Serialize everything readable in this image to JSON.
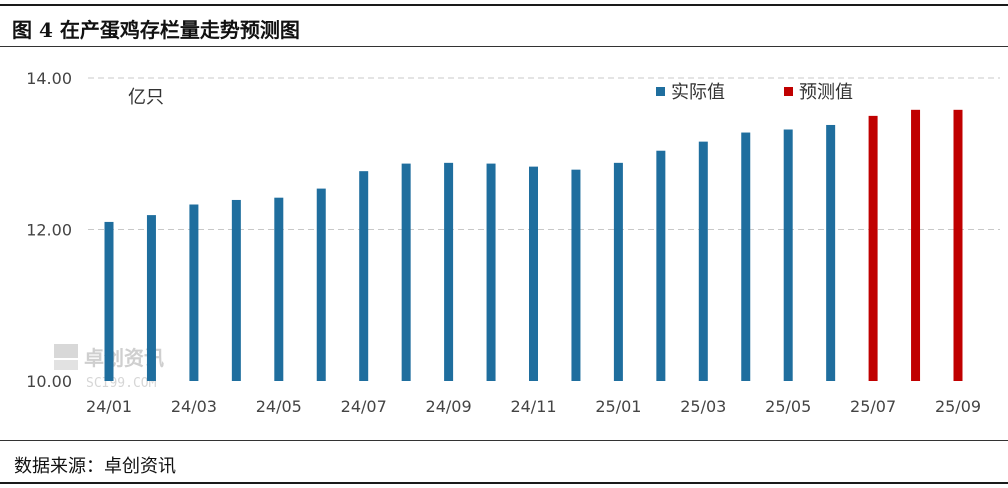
{
  "header": {
    "title": "图 4  在产蛋鸡存栏量走势预测图"
  },
  "footer": {
    "source": "数据来源：卓创资讯"
  },
  "watermark": {
    "text": "卓创资讯",
    "sub": "SCI99.COM"
  },
  "colors": {
    "actual": "#1f6e9e",
    "forecast": "#c00000",
    "grid": "#c8c8c8"
  },
  "chart_data": {
    "type": "bar",
    "unit_label": "亿只",
    "ylim": [
      10.0,
      14.0
    ],
    "yticks": [
      "10.00",
      "12.00",
      "14.00"
    ],
    "grid": true,
    "legend_position": "top-right",
    "categories": [
      "24/01",
      "24/02",
      "24/03",
      "24/04",
      "24/05",
      "24/06",
      "24/07",
      "24/08",
      "24/09",
      "24/10",
      "24/11",
      "24/12",
      "25/01",
      "25/02",
      "25/03",
      "25/04",
      "25/05",
      "25/06",
      "25/07",
      "25/08",
      "25/09"
    ],
    "x_tick_labels": [
      "24/01",
      "24/03",
      "24/05",
      "24/07",
      "24/09",
      "24/11",
      "25/01",
      "25/03",
      "25/05",
      "25/07",
      "25/09"
    ],
    "series": [
      {
        "name": "实际值",
        "color": "#1f6e9e",
        "values": [
          12.1,
          12.19,
          12.33,
          12.39,
          12.42,
          12.54,
          12.77,
          12.87,
          12.88,
          12.87,
          12.83,
          12.79,
          12.88,
          13.04,
          13.16,
          13.28,
          13.32,
          13.38,
          null,
          null,
          null
        ]
      },
      {
        "name": "预测值",
        "color": "#c00000",
        "values": [
          null,
          null,
          null,
          null,
          null,
          null,
          null,
          null,
          null,
          null,
          null,
          null,
          null,
          null,
          null,
          null,
          null,
          null,
          13.5,
          13.58,
          13.58
        ]
      }
    ]
  }
}
